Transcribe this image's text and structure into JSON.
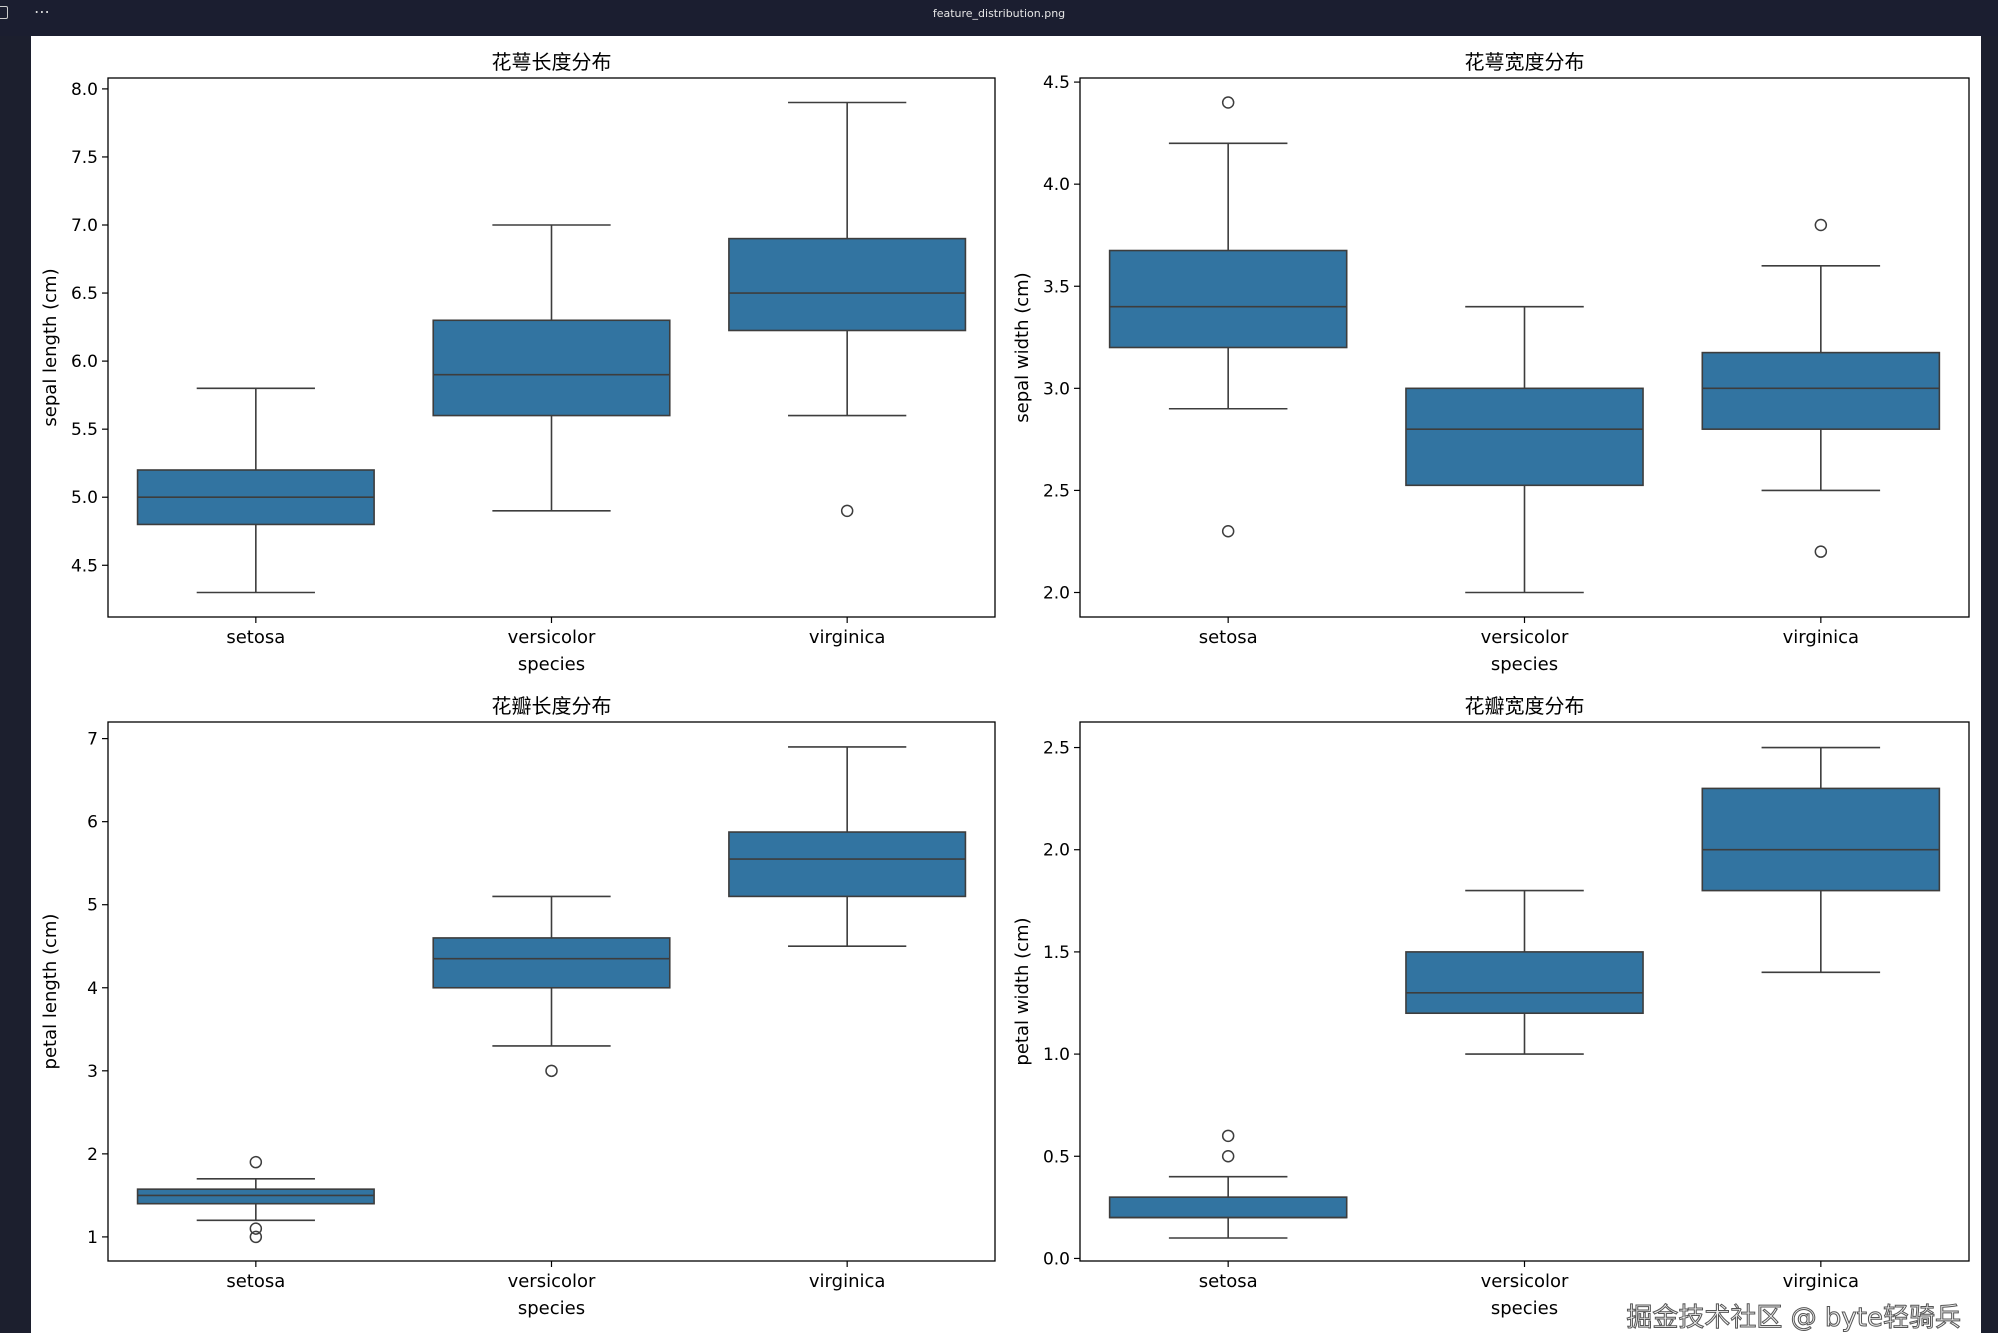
{
  "window": {
    "title": "feature_distribution.png",
    "menu_icon": "ellipsis-icon"
  },
  "watermark": "掘金技术社区 @ byte轻骑兵",
  "chart_data": [
    {
      "type": "box",
      "title": "花萼长度分布",
      "xlabel": "species",
      "ylabel": "sepal length (cm)",
      "categories": [
        "setosa",
        "versicolor",
        "virginica"
      ],
      "ylim": [
        4.12,
        8.08
      ],
      "yticks": [
        4.5,
        5.0,
        5.5,
        6.0,
        6.5,
        7.0,
        7.5,
        8.0
      ],
      "tick_decimals": 1,
      "boxes": [
        {
          "q1": 4.8,
          "median": 5.0,
          "q3": 5.2,
          "whisker_low": 4.3,
          "whisker_high": 5.8,
          "outliers": []
        },
        {
          "q1": 5.6,
          "median": 5.9,
          "q3": 6.3,
          "whisker_low": 4.9,
          "whisker_high": 7.0,
          "outliers": []
        },
        {
          "q1": 6.225,
          "median": 6.5,
          "q3": 6.9,
          "whisker_low": 5.6,
          "whisker_high": 7.9,
          "outliers": [
            4.9
          ]
        }
      ]
    },
    {
      "type": "box",
      "title": "花萼宽度分布",
      "xlabel": "species",
      "ylabel": "sepal width (cm)",
      "categories": [
        "setosa",
        "versicolor",
        "virginica"
      ],
      "ylim": [
        1.88,
        4.52
      ],
      "yticks": [
        2.0,
        2.5,
        3.0,
        3.5,
        4.0,
        4.5
      ],
      "tick_decimals": 1,
      "boxes": [
        {
          "q1": 3.2,
          "median": 3.4,
          "q3": 3.675,
          "whisker_low": 2.9,
          "whisker_high": 4.2,
          "outliers": [
            4.4,
            2.3
          ]
        },
        {
          "q1": 2.525,
          "median": 2.8,
          "q3": 3.0,
          "whisker_low": 2.0,
          "whisker_high": 3.4,
          "outliers": []
        },
        {
          "q1": 2.8,
          "median": 3.0,
          "q3": 3.175,
          "whisker_low": 2.5,
          "whisker_high": 3.6,
          "outliers": [
            3.8,
            2.2
          ]
        }
      ]
    },
    {
      "type": "box",
      "title": "花瓣长度分布",
      "xlabel": "species",
      "ylabel": "petal length (cm)",
      "categories": [
        "setosa",
        "versicolor",
        "virginica"
      ],
      "ylim": [
        0.71,
        7.2
      ],
      "yticks": [
        1,
        2,
        3,
        4,
        5,
        6,
        7
      ],
      "tick_decimals": 0,
      "boxes": [
        {
          "q1": 1.4,
          "median": 1.5,
          "q3": 1.575,
          "whisker_low": 1.2,
          "whisker_high": 1.7,
          "outliers": [
            1.9,
            1.1,
            1.0
          ]
        },
        {
          "q1": 4.0,
          "median": 4.35,
          "q3": 4.6,
          "whisker_low": 3.3,
          "whisker_high": 5.1,
          "outliers": [
            3.0
          ]
        },
        {
          "q1": 5.1,
          "median": 5.55,
          "q3": 5.875,
          "whisker_low": 4.5,
          "whisker_high": 6.9,
          "outliers": []
        }
      ]
    },
    {
      "type": "box",
      "title": "花瓣宽度分布",
      "xlabel": "species",
      "ylabel": "petal width (cm)",
      "categories": [
        "setosa",
        "versicolor",
        "virginica"
      ],
      "ylim": [
        -0.0125,
        2.625
      ],
      "yticks": [
        0.0,
        0.5,
        1.0,
        1.5,
        2.0,
        2.5
      ],
      "tick_decimals": 1,
      "boxes": [
        {
          "q1": 0.2,
          "median": 0.2,
          "q3": 0.3,
          "whisker_low": 0.1,
          "whisker_high": 0.4,
          "outliers": [
            0.6,
            0.5
          ]
        },
        {
          "q1": 1.2,
          "median": 1.3,
          "q3": 1.5,
          "whisker_low": 1.0,
          "whisker_high": 1.8,
          "outliers": []
        },
        {
          "q1": 1.8,
          "median": 2.0,
          "q3": 2.3,
          "whisker_low": 1.4,
          "whisker_high": 2.5,
          "outliers": []
        }
      ]
    }
  ],
  "colors": {
    "box_fill": "#3274a1",
    "line": "#3d3d3d",
    "axis": "#000000"
  }
}
